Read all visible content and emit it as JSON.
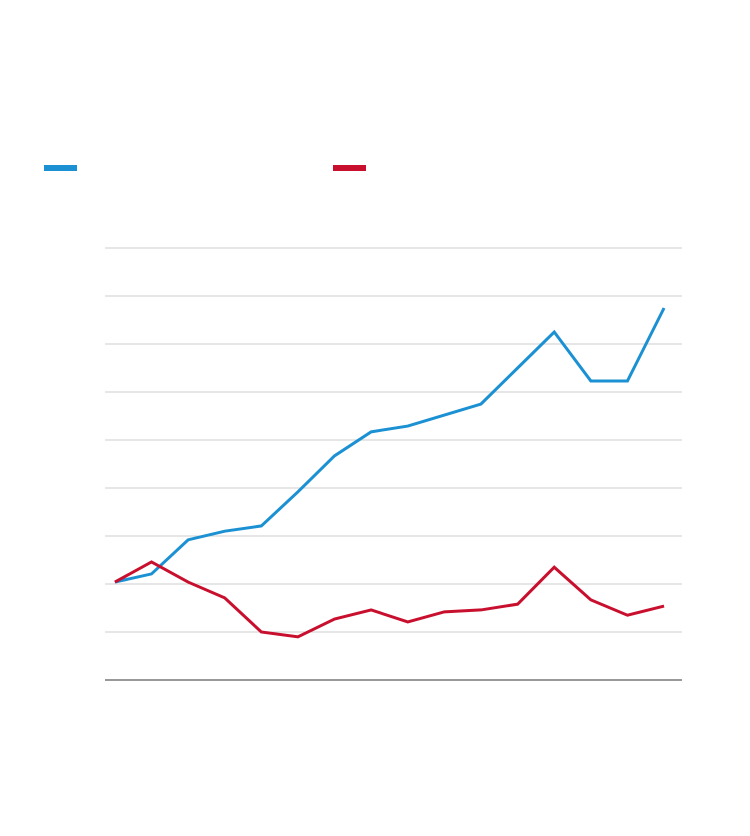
{
  "chart_data": {
    "type": "line",
    "x": [
      0,
      1,
      2,
      3,
      4,
      5,
      6,
      7,
      8,
      9,
      10,
      11,
      12,
      13,
      14,
      15
    ],
    "xlim": [
      -0.27,
      15.49
    ],
    "series": [
      {
        "color": "#1b91d3",
        "values": [
          2.04,
          2.21,
          2.92,
          3.1,
          3.21,
          3.92,
          4.67,
          5.17,
          5.29,
          5.52,
          5.75,
          6.5,
          7.25,
          6.23,
          6.23,
          7.75
        ]
      },
      {
        "color": "#c8102e",
        "values": [
          2.04,
          2.46,
          2.04,
          1.71,
          1.0,
          0.9,
          1.27,
          1.46,
          1.21,
          1.42,
          1.46,
          1.58,
          2.35,
          1.67,
          1.35,
          1.54
        ]
      }
    ],
    "ylim": [
      0,
      9
    ],
    "yticks": [
      0,
      1,
      2,
      3,
      4,
      5,
      6,
      7,
      8,
      9
    ],
    "grid": true
  }
}
